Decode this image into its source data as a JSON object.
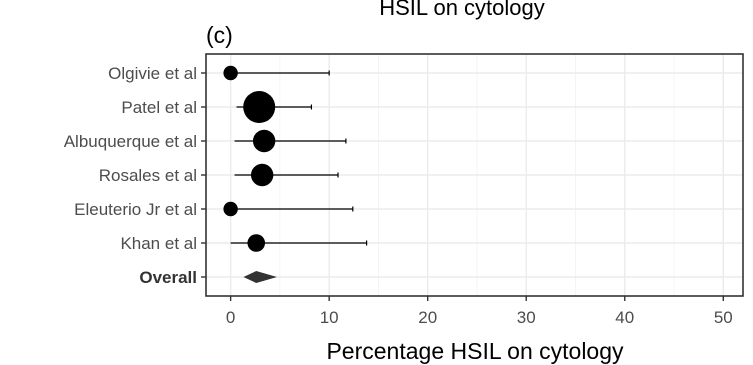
{
  "chart_data": {
    "type": "forest",
    "panel_label": "(c)",
    "title_fragment": "HSIL on cytology",
    "xlabel": "Percentage HSIL on cytology",
    "xlim": [
      -2.5,
      52
    ],
    "x_ticks": [
      0,
      10,
      20,
      30,
      40,
      50
    ],
    "x_tick_labels": [
      "0",
      "10",
      "20",
      "30",
      "40",
      "50"
    ],
    "grid": true,
    "studies": [
      {
        "label": "Olgivie et al",
        "estimate": 0.0,
        "lower": 0.0,
        "upper": 10.0,
        "weight": 0.9
      },
      {
        "label": "Patel et al",
        "estimate": 2.9,
        "lower": 0.6,
        "upper": 8.2,
        "weight": 2.0
      },
      {
        "label": "Albuquerque et al",
        "estimate": 3.4,
        "lower": 0.4,
        "upper": 11.7,
        "weight": 1.4
      },
      {
        "label": "Rosales et al",
        "estimate": 3.2,
        "lower": 0.4,
        "upper": 10.9,
        "weight": 1.4
      },
      {
        "label": "Eleuterio Jr et al",
        "estimate": 0.0,
        "lower": 0.0,
        "upper": 12.4,
        "weight": 0.9
      },
      {
        "label": "Khan et al",
        "estimate": 2.6,
        "lower": 0.0,
        "upper": 13.8,
        "weight": 1.1
      }
    ],
    "overall": {
      "label": "Overall",
      "estimate": 2.6,
      "lower": 1.3,
      "upper": 4.7
    }
  }
}
